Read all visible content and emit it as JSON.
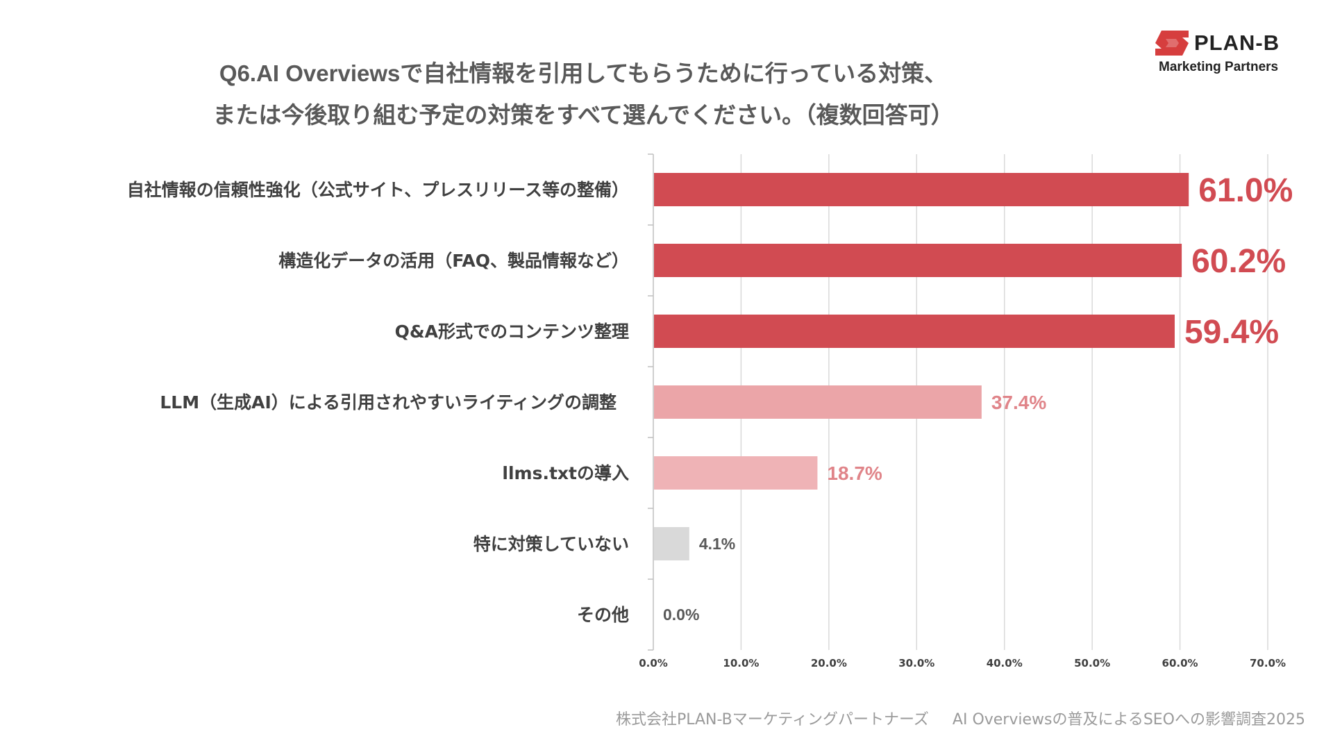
{
  "header": {
    "title_line1": "Q6.AI Overviewsで自社情報を引用してもらうために行っている対策、",
    "title_line2": "または今後取り組む予定の対策をすべて選んでください。（複数回答可）"
  },
  "logo": {
    "name": "PLAN-B",
    "tagline": "Marketing Partners",
    "brand_color": "#d63e3e"
  },
  "footer": {
    "company": "株式会社PLAN-Bマーケティングパートナーズ",
    "survey": "AI Overviewsの普及によるSEOへの影響調査2025"
  },
  "chart_data": {
    "type": "bar",
    "orientation": "horizontal",
    "title": "Q6.AI Overviewsで自社情報を引用してもらうために行っている対策、または今後取り組む予定の対策をすべて選んでください。（複数回答可）",
    "categories": [
      "自社情報の信頼性強化（公式サイト、プレスリリース等の整備）",
      "構造化データの活用（FAQ、製品情報など）",
      "Q&A形式でのコンテンツ整理",
      "LLM（生成AI）による引用されやすいライティングの調整",
      "llms.txtの導入",
      "特に対策していない",
      "その他"
    ],
    "values": [
      61.0,
      60.2,
      59.4,
      37.4,
      18.7,
      4.1,
      0.0
    ],
    "value_labels": [
      "61.0%",
      "60.2%",
      "59.4%",
      "37.4%",
      "18.7%",
      "4.1%",
      "0.0%"
    ],
    "bar_colors": [
      "#d14b52",
      "#d14b52",
      "#d14b52",
      "#eba5a8",
      "#efb3b6",
      "#d9d9d9",
      "#d9d9d9"
    ],
    "label_colors": [
      "#d14b52",
      "#d14b52",
      "#d14b52",
      "#e08489",
      "#e08489",
      "#595959",
      "#595959"
    ],
    "xlim": [
      0,
      70
    ],
    "xticks": [
      0,
      10,
      20,
      30,
      40,
      50,
      60,
      70
    ],
    "xtick_labels": [
      "0.0%",
      "10.0%",
      "20.0%",
      "30.0%",
      "40.0%",
      "50.0%",
      "60.0%",
      "70.0%"
    ],
    "grid": true,
    "xlabel": "",
    "ylabel": ""
  }
}
